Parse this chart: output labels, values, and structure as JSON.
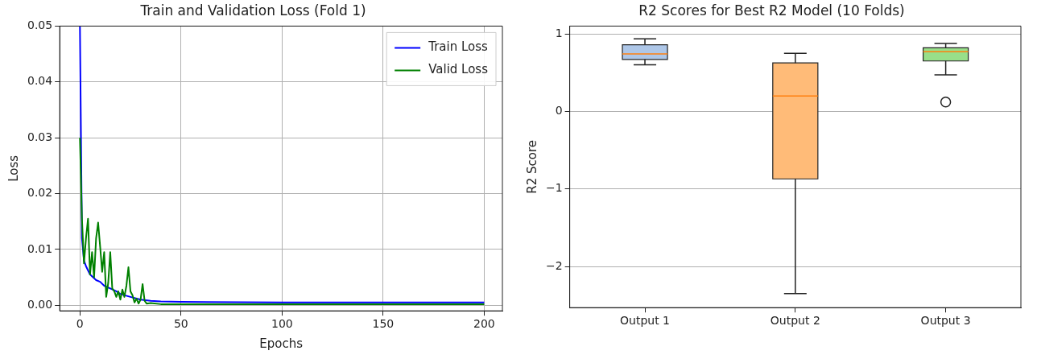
{
  "chart_data": [
    {
      "type": "line",
      "title": "Train and Validation Loss (Fold 1)",
      "xlabel": "Epochs",
      "ylabel": "Loss",
      "xlim": [
        -10,
        209
      ],
      "xticks": [
        0,
        50,
        100,
        150,
        200
      ],
      "ylim": [
        -0.001,
        0.05
      ],
      "yticks": [
        {
          "value": 0,
          "label": "0.00"
        },
        {
          "value": 0.01,
          "label": "0.01"
        },
        {
          "value": 0.02,
          "label": "0.02"
        },
        {
          "value": 0.03,
          "label": "0.03"
        },
        {
          "value": 0.04,
          "label": "0.04"
        },
        {
          "value": 0.05,
          "label": "0.05"
        }
      ],
      "grid": true,
      "legend": "top right",
      "marker": "none",
      "line_style": "solid",
      "series": [
        {
          "name": "Train Loss",
          "color": "#0000ff",
          "x": [
            0,
            1,
            2,
            3,
            5,
            8,
            10,
            12,
            15,
            18,
            20,
            25,
            30,
            35,
            40,
            50,
            100,
            150,
            200
          ],
          "values": [
            0.05,
            0.012,
            0.008,
            0.007,
            0.0055,
            0.0045,
            0.0042,
            0.0035,
            0.003,
            0.0025,
            0.002,
            0.0015,
            0.001,
            0.0008,
            0.0007,
            0.0006,
            0.0005,
            0.0005,
            0.0005
          ]
        },
        {
          "name": "Valid Loss",
          "color": "#008000",
          "x": [
            0,
            1,
            2,
            3,
            4,
            5,
            6,
            7,
            8,
            9,
            10,
            11,
            12,
            13,
            14,
            15,
            16,
            17,
            18,
            19,
            20,
            21,
            22,
            23,
            24,
            25,
            26,
            27,
            28,
            29,
            30,
            31,
            32,
            33,
            35,
            40,
            50,
            100,
            150,
            200
          ],
          "values": [
            0.03,
            0.0155,
            0.0075,
            0.012,
            0.0155,
            0.0055,
            0.0095,
            0.005,
            0.012,
            0.0148,
            0.0105,
            0.006,
            0.0095,
            0.0015,
            0.004,
            0.0095,
            0.003,
            0.0025,
            0.0015,
            0.0025,
            0.001,
            0.0028,
            0.0015,
            0.0035,
            0.0068,
            0.0025,
            0.0018,
            0.0005,
            0.0012,
            0.0003,
            0.001,
            0.0038,
            0.0008,
            0.0003,
            0.0004,
            0.0002,
            0.0002,
            0.0002,
            0.0002,
            0.0002
          ]
        }
      ]
    },
    {
      "type": "box",
      "title": "R2 Scores for Best R2 Model (10 Folds)",
      "ylabel": "R2 Score",
      "categories": [
        "Output 1",
        "Output 2",
        "Output 3"
      ],
      "ylim": [
        -2.53,
        1.1
      ],
      "yticks": [
        {
          "value": -2,
          "label": "−2"
        },
        {
          "value": -1,
          "label": "−1"
        },
        0,
        1
      ],
      "grid": "y",
      "colors": [
        "#aec7e8",
        "#ffbb78",
        "#98df8a"
      ],
      "boxes": [
        {
          "low": 0.6,
          "q1": 0.67,
          "median": 0.74,
          "q3": 0.86,
          "high": 0.935
        },
        {
          "low": -2.35,
          "q1": -0.87,
          "median": 0.2,
          "q3": 0.625,
          "high": 0.75
        },
        {
          "low": 0.47,
          "q1": 0.65,
          "median": 0.77,
          "q3": 0.82,
          "high": 0.875,
          "outliers": [
            0.12
          ]
        }
      ]
    }
  ]
}
